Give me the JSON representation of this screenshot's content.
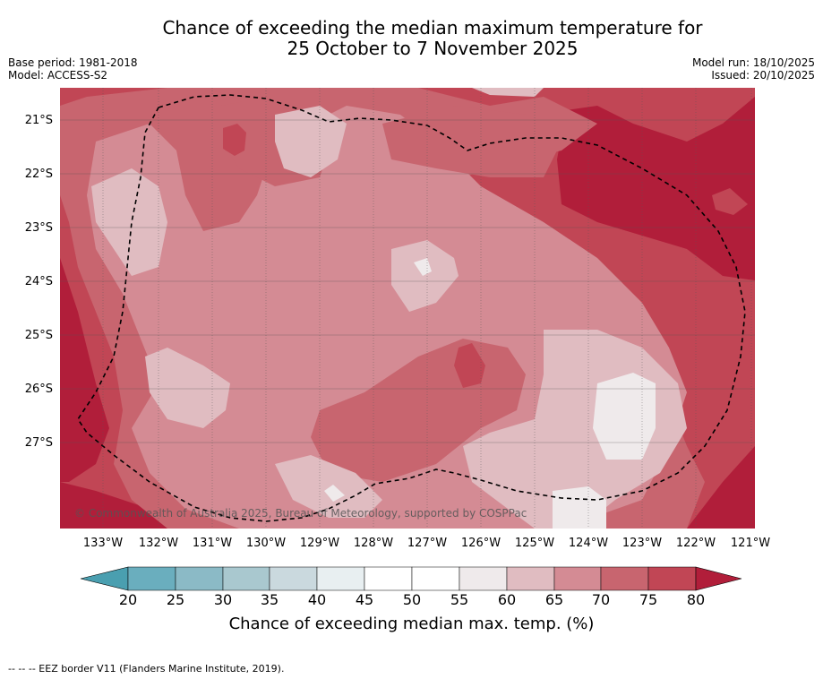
{
  "title": {
    "line1": "Chance of exceeding the median maximum temperature for",
    "line2": "25 October to 7 November 2025"
  },
  "info": {
    "base_period": "Base period: 1981-2018",
    "model": "Model: ACCESS-S2",
    "model_run": "Model run: 18/10/2025",
    "issued": "Issued: 20/10/2025"
  },
  "map": {
    "lat_labels": [
      "21°S",
      "22°S",
      "23°S",
      "24°S",
      "25°S",
      "26°S",
      "27°S"
    ],
    "lon_labels": [
      "133°W",
      "132°W",
      "131°W",
      "130°W",
      "129°W",
      "128°W",
      "127°W",
      "126°W",
      "125°W",
      "124°W",
      "123°W",
      "122°W",
      "121°W"
    ],
    "copyright": "© Commonwealth of Australia 2025, Bureau of Meteorology, supported by COSPPac"
  },
  "colorbar": {
    "ticks": [
      "20",
      "25",
      "30",
      "35",
      "40",
      "45",
      "50",
      "55",
      "60",
      "65",
      "70",
      "75",
      "80"
    ],
    "colors": {
      "below20": "#4a9fb0",
      "c20_25": "#6aaebe",
      "c25_30": "#8bbac6",
      "c30_35": "#a9c8cf",
      "c35_40": "#cad9de",
      "c40_45": "#e8eff1",
      "c45_50": "#ffffff",
      "c50_55": "#ffffff",
      "c55_60": "#efeaeb",
      "c60_65": "#e0bcc1",
      "c65_70": "#d48b94",
      "c70_75": "#c8656f",
      "c75_80": "#c14655",
      "above80": "#b11e3a"
    },
    "label": "Chance of exceeding median max. temp. (%)"
  },
  "footer": "--  --  -- EEZ border V11 (Flanders Marine Institute, 2019)."
}
